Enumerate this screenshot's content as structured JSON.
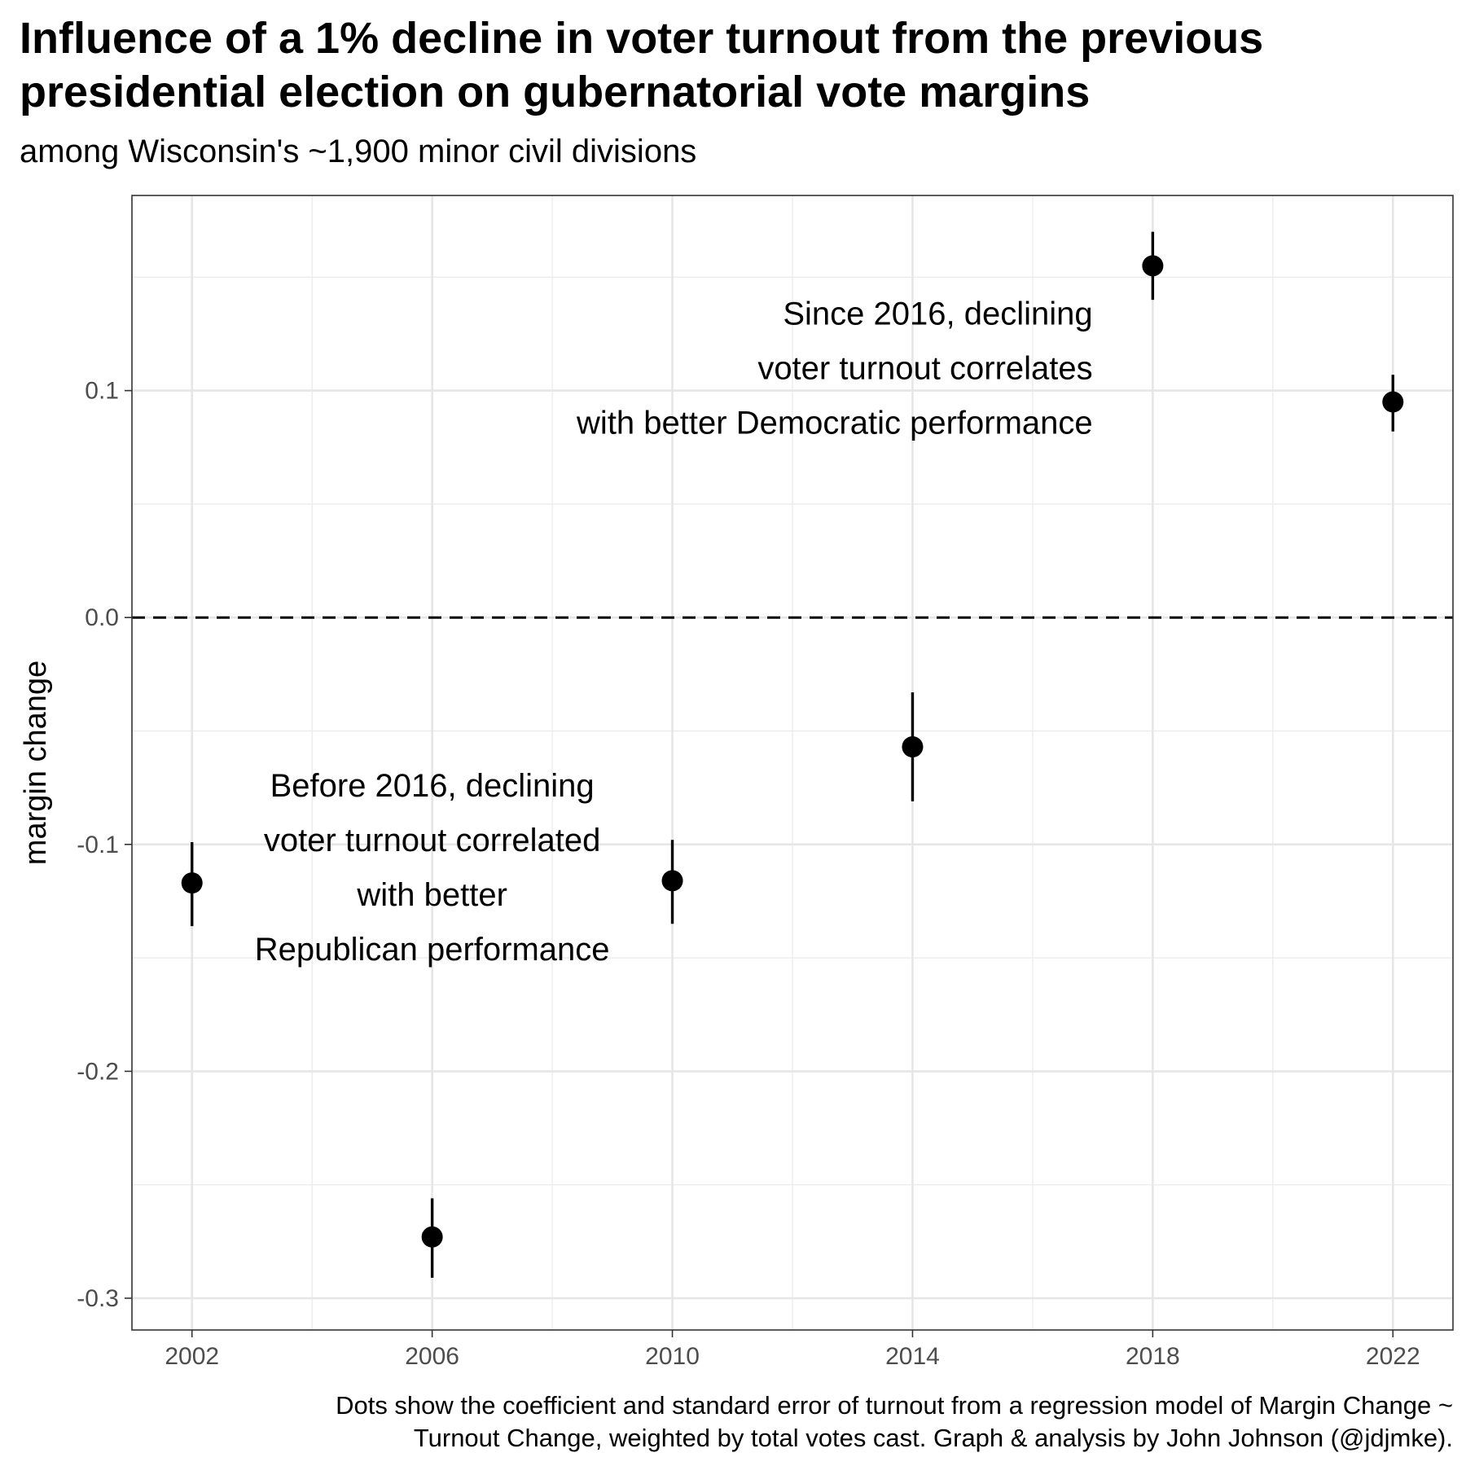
{
  "header": {
    "title": "Influence of a 1% decline in voter turnout from the previous\npresidential election on gubernatorial vote margins",
    "subtitle": "among Wisconsin's ~1,900 minor civil divisions"
  },
  "footer": {
    "caption": "Dots show the coefficient and standard error of turnout from a regression model of Margin Change ~\nTurnout Change, weighted by total votes cast. Graph & analysis by John Johnson (@jdjmke)."
  },
  "chart_data": {
    "type": "scatter",
    "title": "Influence of a 1% decline in voter turnout from the previous presidential election on gubernatorial vote margins",
    "subtitle": "among Wisconsin's ~1,900 minor civil divisions",
    "xlabel": "",
    "ylabel": "margin change",
    "xlim": [
      2001,
      2023
    ],
    "ylim": [
      -0.314,
      0.186
    ],
    "x_ticks": [
      "2002",
      "2006",
      "2010",
      "2014",
      "2018",
      "2022"
    ],
    "y_ticks": [
      "-0.3",
      "-0.2",
      "-0.1",
      "0.0",
      "0.1"
    ],
    "grid": true,
    "reference_line": {
      "y": 0.0,
      "style": "dashed"
    },
    "points": [
      {
        "x": 2002,
        "y": -0.117,
        "ymin": -0.136,
        "ymax": -0.099
      },
      {
        "x": 2006,
        "y": -0.273,
        "ymin": -0.291,
        "ymax": -0.256
      },
      {
        "x": 2010,
        "y": -0.116,
        "ymin": -0.135,
        "ymax": -0.098
      },
      {
        "x": 2014,
        "y": -0.057,
        "ymin": -0.081,
        "ymax": -0.033
      },
      {
        "x": 2018,
        "y": 0.155,
        "ymin": 0.14,
        "ymax": 0.17
      },
      {
        "x": 2022,
        "y": 0.095,
        "ymin": 0.082,
        "ymax": 0.107
      }
    ],
    "annotations": [
      {
        "text": "Since 2016, declining\nvoter turnout correlates\nwith better Democratic performance",
        "x": 2017,
        "y": 0.11,
        "align": "right"
      },
      {
        "text": "Before 2016, declining\nvoter turnout correlated\nwith better\nRepublican performance",
        "x": 2006,
        "y": -0.11,
        "align": "center"
      }
    ]
  }
}
